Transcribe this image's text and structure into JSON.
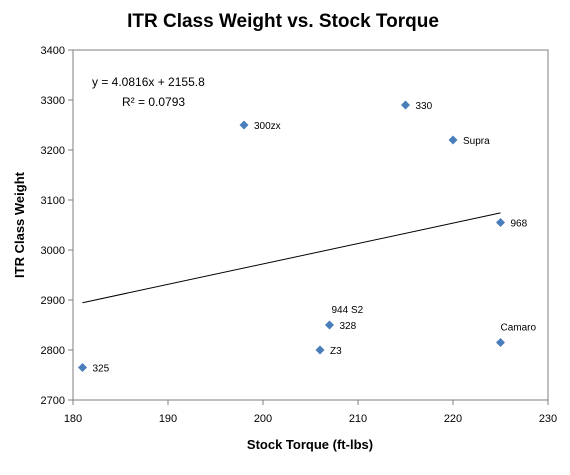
{
  "chart_data": {
    "type": "scatter",
    "title": "ITR Class Weight vs. Stock Torque",
    "xlabel": "Stock Torque (ft-lbs)",
    "ylabel": "ITR Class Weight",
    "xlim": [
      180,
      230
    ],
    "ylim": [
      2700,
      3400
    ],
    "xticks": [
      180,
      190,
      200,
      210,
      220,
      230
    ],
    "yticks": [
      2700,
      2800,
      2900,
      3000,
      3100,
      3200,
      3300,
      3400
    ],
    "grid": false,
    "legend": "none",
    "points": [
      {
        "label": "325",
        "x": 181,
        "y": 2765
      },
      {
        "label": "300zx",
        "x": 198,
        "y": 3250
      },
      {
        "label": "Z3",
        "x": 206,
        "y": 2800
      },
      {
        "label": "944 S2",
        "x": 207,
        "y": 2850
      },
      {
        "label": "328",
        "x": 207,
        "y": 2850
      },
      {
        "label": "330",
        "x": 215,
        "y": 3290
      },
      {
        "label": "Supra",
        "x": 220,
        "y": 3220
      },
      {
        "label": "968",
        "x": 225,
        "y": 3055
      },
      {
        "label": "Camaro",
        "x": 225,
        "y": 2815
      }
    ],
    "trendline": {
      "slope": 4.0816,
      "intercept": 2155.8,
      "equation": "y = 4.0816x + 2155.8",
      "r2_text": "R² = 0.0793"
    },
    "colors": {
      "marker": "#4a7ebb",
      "trendline": "#000000",
      "plot_border": "#7f7f7f"
    }
  }
}
